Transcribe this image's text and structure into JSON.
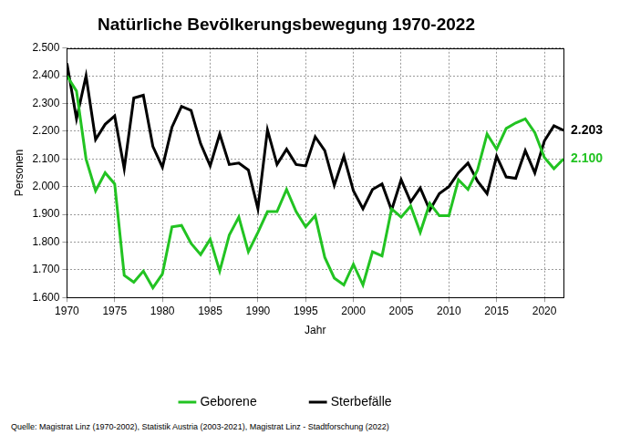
{
  "chart_data": {
    "type": "line",
    "title": "Natürliche Bevölkerungsbewegung 1970-2022",
    "x_label": "Jahr",
    "y_label": "Personen",
    "source": "Quelle: Magistrat Linz (1970-2002), Statistik Austria (2003-2021), Magistrat Linz - Stadtforschung (2022)",
    "x": [
      1970,
      1971,
      1972,
      1973,
      1974,
      1975,
      1976,
      1977,
      1978,
      1979,
      1980,
      1981,
      1982,
      1983,
      1984,
      1985,
      1986,
      1987,
      1988,
      1989,
      1990,
      1991,
      1992,
      1993,
      1994,
      1995,
      1996,
      1997,
      1998,
      1999,
      2000,
      2001,
      2002,
      2003,
      2004,
      2005,
      2006,
      2007,
      2008,
      2009,
      2010,
      2011,
      2012,
      2013,
      2014,
      2015,
      2016,
      2017,
      2018,
      2019,
      2020,
      2021,
      2022
    ],
    "series": [
      {
        "name": "Geborene",
        "color": "#22c322",
        "values": [
          2400,
          2345,
          2100,
          1985,
          2050,
          2010,
          1680,
          1655,
          1695,
          1635,
          1685,
          1855,
          1860,
          1795,
          1755,
          1810,
          1695,
          1825,
          1890,
          1765,
          1835,
          1910,
          1910,
          1990,
          1910,
          1855,
          1895,
          1745,
          1670,
          1645,
          1720,
          1645,
          1765,
          1750,
          1920,
          1890,
          1930,
          1835,
          1940,
          1895,
          1895,
          2025,
          1990,
          2060,
          2190,
          2135,
          2210,
          2230,
          2245,
          2195,
          2105,
          2065,
          2100
        ]
      },
      {
        "name": "Sterbefälle",
        "color": "#000000",
        "values": [
          2445,
          2245,
          2400,
          2170,
          2225,
          2255,
          2065,
          2320,
          2330,
          2145,
          2070,
          2215,
          2290,
          2275,
          2155,
          2075,
          2190,
          2080,
          2085,
          2060,
          1920,
          2205,
          2080,
          2135,
          2080,
          2075,
          2180,
          2130,
          2005,
          2110,
          1985,
          1920,
          1990,
          2010,
          1915,
          2025,
          1945,
          1995,
          1915,
          1975,
          2000,
          2050,
          2085,
          2020,
          1975,
          2110,
          2035,
          2030,
          2130,
          2050,
          2165,
          2220,
          2203
        ]
      }
    ],
    "annotations": [
      {
        "text": "2.203",
        "series": "Sterbefälle",
        "x": 2022,
        "y": 2203
      },
      {
        "text": "2.100",
        "series": "Geborene",
        "x": 2022,
        "y": 2100
      }
    ],
    "xlim": [
      1970,
      2022
    ],
    "xticks": [
      1970,
      1975,
      1980,
      1985,
      1990,
      1995,
      2000,
      2005,
      2010,
      2015,
      2020
    ],
    "ylim": [
      1600,
      2500
    ],
    "yticks": [
      {
        "value": 1600,
        "label": "1.600"
      },
      {
        "value": 1700,
        "label": "1.700"
      },
      {
        "value": 1800,
        "label": "1.800"
      },
      {
        "value": 1900,
        "label": "1.900"
      },
      {
        "value": 2000,
        "label": "2.000"
      },
      {
        "value": 2100,
        "label": "2.100"
      },
      {
        "value": 2200,
        "label": "2.200"
      },
      {
        "value": 2300,
        "label": "2.300"
      },
      {
        "value": 2400,
        "label": "2.400"
      },
      {
        "value": 2500,
        "label": "2.500"
      }
    ],
    "grid": true,
    "legend": "bottom"
  }
}
